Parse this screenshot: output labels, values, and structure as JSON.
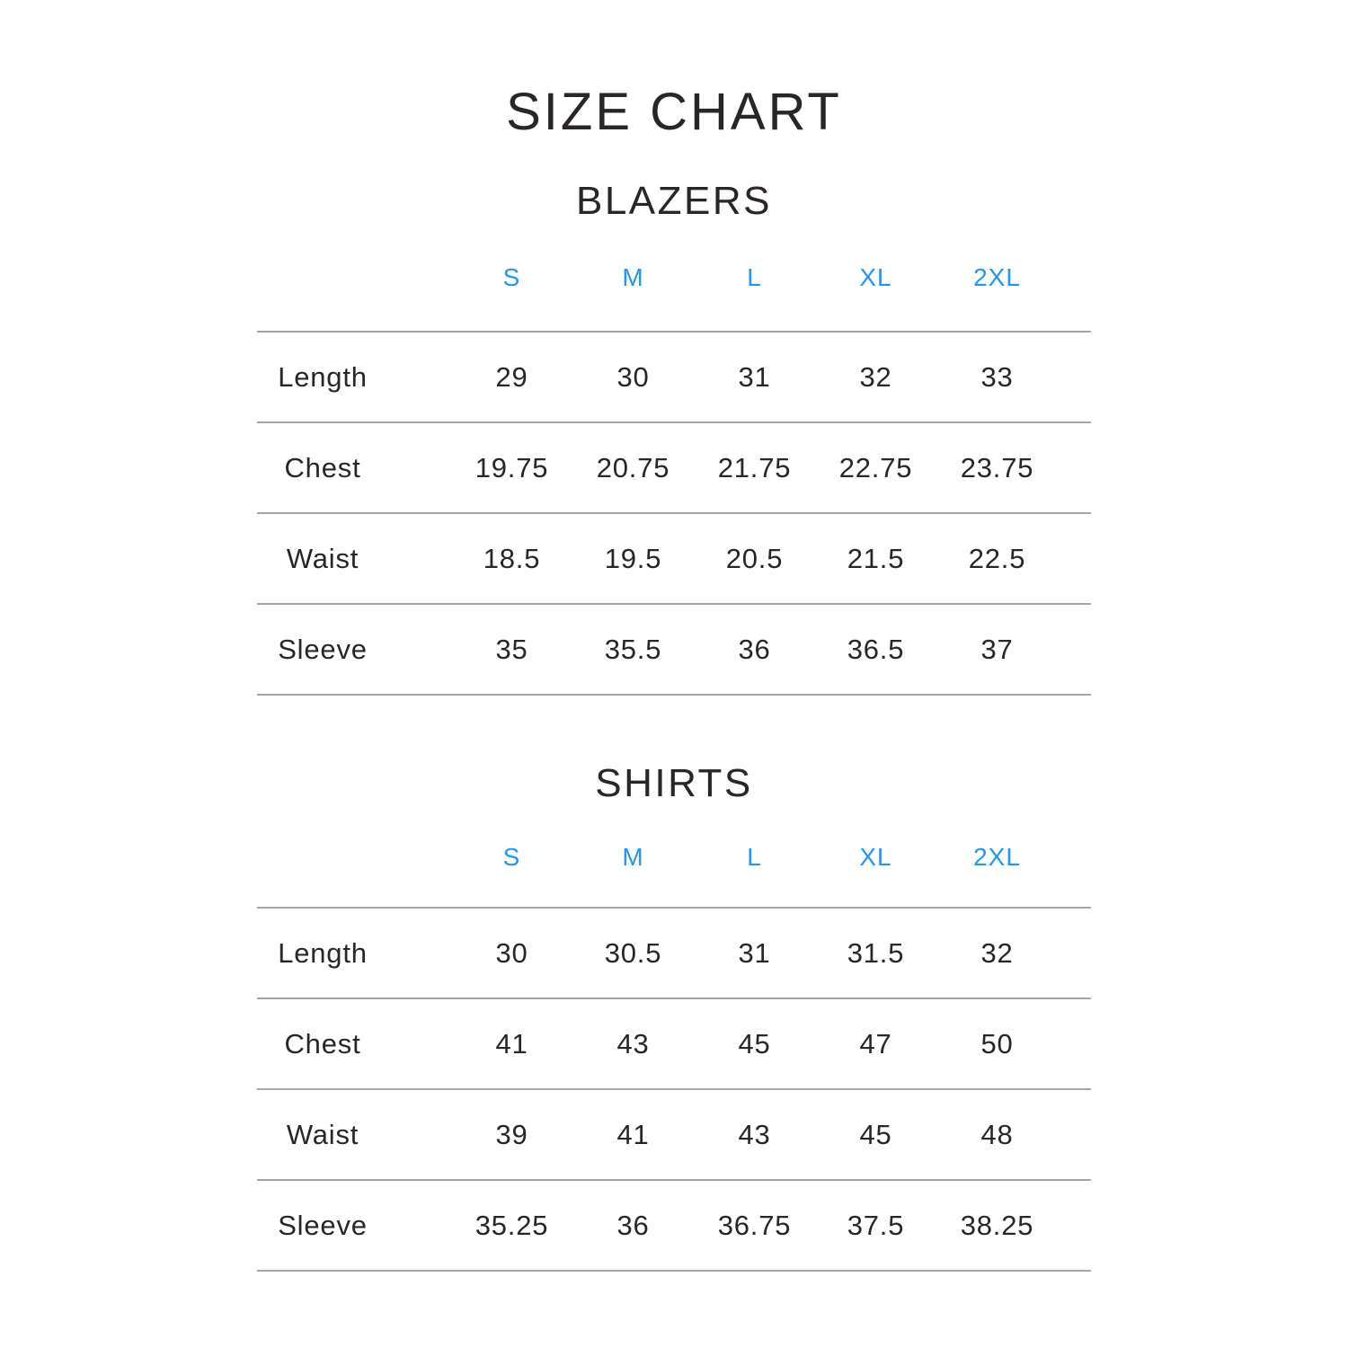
{
  "title": "SIZE CHART",
  "colors": {
    "accent_blue": "#2196f3",
    "text": "#2a2526",
    "divider": "#a6a6a6"
  },
  "chart_data": [
    {
      "type": "table",
      "title": "BLAZERS",
      "columns": [
        "S",
        "M",
        "L",
        "XL",
        "2XL"
      ],
      "rows": [
        {
          "label": "Length",
          "values": [
            29,
            30,
            31,
            32,
            33
          ]
        },
        {
          "label": "Chest",
          "values": [
            19.75,
            20.75,
            21.75,
            22.75,
            23.75
          ]
        },
        {
          "label": "Waist",
          "values": [
            18.5,
            19.5,
            20.5,
            21.5,
            22.5
          ]
        },
        {
          "label": "Sleeve",
          "values": [
            35,
            35.5,
            36,
            36.5,
            37
          ]
        }
      ]
    },
    {
      "type": "table",
      "title": "SHIRTS",
      "columns": [
        "S",
        "M",
        "L",
        "XL",
        "2XL"
      ],
      "rows": [
        {
          "label": "Length",
          "values": [
            30,
            30.5,
            31,
            31.5,
            32
          ]
        },
        {
          "label": "Chest",
          "values": [
            41,
            43,
            45,
            47,
            50
          ]
        },
        {
          "label": "Waist",
          "values": [
            39,
            41,
            43,
            45,
            48
          ]
        },
        {
          "label": "Sleeve",
          "values": [
            35.25,
            36,
            36.75,
            37.5,
            38.25
          ]
        }
      ]
    }
  ]
}
